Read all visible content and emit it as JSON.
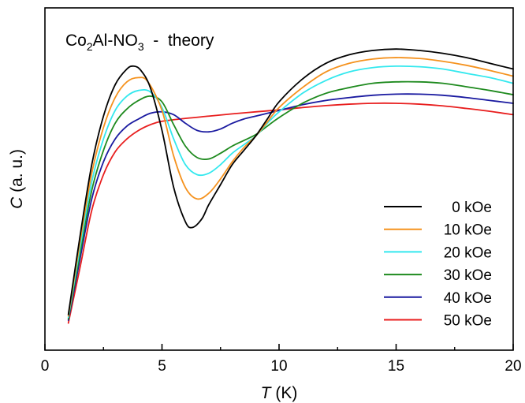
{
  "chart_data": {
    "type": "line",
    "title": "",
    "annotation": {
      "prefix": "Co",
      "sub1": "2",
      "middle": "Al-NO",
      "sub2": "3",
      "suffix": "  -  theory"
    },
    "xlabel": {
      "italic": "T",
      "rest": " (K)"
    },
    "ylabel": {
      "italic": "C",
      "rest": " (a. u.)"
    },
    "xlim": [
      0,
      20
    ],
    "ylim": [
      0,
      1
    ],
    "x_ticks": [
      0,
      5,
      10,
      15,
      20
    ],
    "x_ticks_display": [
      "0",
      "5",
      "10",
      "15",
      "20"
    ],
    "x_minor_ticks": [
      2.5,
      7.5,
      12.5,
      17.5
    ],
    "y_tick_labels": false,
    "grid": false,
    "legend_position": "right",
    "series": [
      {
        "name": "0 kOe",
        "color": "#000000",
        "points": [
          [
            1,
            0.075
          ],
          [
            1.5,
            0.35
          ],
          [
            2,
            0.6
          ],
          [
            2.5,
            0.77
          ],
          [
            3,
            0.88
          ],
          [
            3.5,
            0.935
          ],
          [
            3.8,
            0.945
          ],
          [
            4.1,
            0.93
          ],
          [
            4.5,
            0.87
          ],
          [
            5,
            0.72
          ],
          [
            5.5,
            0.52
          ],
          [
            6,
            0.4
          ],
          [
            6.3,
            0.38
          ],
          [
            6.7,
            0.41
          ],
          [
            7,
            0.46
          ],
          [
            7.5,
            0.53
          ],
          [
            8,
            0.6
          ],
          [
            8.5,
            0.65
          ],
          [
            9,
            0.7
          ],
          [
            9.5,
            0.76
          ],
          [
            10,
            0.82
          ],
          [
            11,
            0.9
          ],
          [
            12,
            0.955
          ],
          [
            13,
            0.985
          ],
          [
            14,
            1.0
          ],
          [
            15,
            1.005
          ],
          [
            16,
            1.0
          ],
          [
            17,
            0.99
          ],
          [
            18,
            0.975
          ],
          [
            19,
            0.955
          ],
          [
            20,
            0.935
          ]
        ]
      },
      {
        "name": "10 kOe",
        "color": "#F5921E",
        "points": [
          [
            1,
            0.07
          ],
          [
            1.5,
            0.33
          ],
          [
            2,
            0.57
          ],
          [
            2.5,
            0.73
          ],
          [
            3,
            0.835
          ],
          [
            3.5,
            0.89
          ],
          [
            4,
            0.905
          ],
          [
            4.4,
            0.89
          ],
          [
            5,
            0.79
          ],
          [
            5.5,
            0.63
          ],
          [
            6,
            0.52
          ],
          [
            6.5,
            0.48
          ],
          [
            7,
            0.5
          ],
          [
            7.5,
            0.55
          ],
          [
            8,
            0.61
          ],
          [
            8.5,
            0.66
          ],
          [
            9,
            0.7
          ],
          [
            9.5,
            0.75
          ],
          [
            10,
            0.8
          ],
          [
            11,
            0.87
          ],
          [
            12,
            0.925
          ],
          [
            13,
            0.955
          ],
          [
            14,
            0.97
          ],
          [
            15,
            0.975
          ],
          [
            16,
            0.972
          ],
          [
            17,
            0.962
          ],
          [
            18,
            0.948
          ],
          [
            19,
            0.93
          ],
          [
            20,
            0.91
          ]
        ]
      },
      {
        "name": "20 kOe",
        "color": "#33E8EE",
        "points": [
          [
            1,
            0.065
          ],
          [
            1.5,
            0.31
          ],
          [
            2,
            0.54
          ],
          [
            2.5,
            0.69
          ],
          [
            3,
            0.79
          ],
          [
            3.5,
            0.84
          ],
          [
            4,
            0.86
          ],
          [
            4.5,
            0.855
          ],
          [
            5,
            0.8
          ],
          [
            5.5,
            0.69
          ],
          [
            6,
            0.6
          ],
          [
            6.5,
            0.565
          ],
          [
            7,
            0.57
          ],
          [
            7.5,
            0.6
          ],
          [
            8,
            0.64
          ],
          [
            8.5,
            0.67
          ],
          [
            9,
            0.7
          ],
          [
            9.5,
            0.745
          ],
          [
            10,
            0.785
          ],
          [
            11,
            0.85
          ],
          [
            12,
            0.895
          ],
          [
            13,
            0.925
          ],
          [
            14,
            0.94
          ],
          [
            15,
            0.945
          ],
          [
            16,
            0.943
          ],
          [
            17,
            0.935
          ],
          [
            18,
            0.92
          ],
          [
            19,
            0.905
          ],
          [
            20,
            0.885
          ]
        ]
      },
      {
        "name": "30 kOe",
        "color": "#1E8A1E",
        "points": [
          [
            1,
            0.06
          ],
          [
            1.5,
            0.29
          ],
          [
            2,
            0.51
          ],
          [
            2.5,
            0.65
          ],
          [
            3,
            0.745
          ],
          [
            3.5,
            0.795
          ],
          [
            4,
            0.825
          ],
          [
            4.5,
            0.84
          ],
          [
            5,
            0.82
          ],
          [
            5.5,
            0.74
          ],
          [
            6,
            0.665
          ],
          [
            6.5,
            0.625
          ],
          [
            7,
            0.62
          ],
          [
            7.5,
            0.64
          ],
          [
            8,
            0.665
          ],
          [
            8.5,
            0.685
          ],
          [
            9,
            0.705
          ],
          [
            9.5,
            0.735
          ],
          [
            10,
            0.765
          ],
          [
            11,
            0.815
          ],
          [
            12,
            0.85
          ],
          [
            13,
            0.87
          ],
          [
            14,
            0.885
          ],
          [
            15,
            0.89
          ],
          [
            16,
            0.89
          ],
          [
            17,
            0.885
          ],
          [
            18,
            0.873
          ],
          [
            19,
            0.86
          ],
          [
            20,
            0.845
          ]
        ]
      },
      {
        "name": "40 kOe",
        "color": "#1A1AA0",
        "points": [
          [
            1,
            0.055
          ],
          [
            1.5,
            0.27
          ],
          [
            2,
            0.48
          ],
          [
            2.5,
            0.61
          ],
          [
            3,
            0.69
          ],
          [
            3.5,
            0.735
          ],
          [
            4,
            0.76
          ],
          [
            4.5,
            0.78
          ],
          [
            5,
            0.785
          ],
          [
            5.5,
            0.775
          ],
          [
            6,
            0.745
          ],
          [
            6.5,
            0.72
          ],
          [
            7,
            0.715
          ],
          [
            7.5,
            0.725
          ],
          [
            8,
            0.745
          ],
          [
            8.5,
            0.76
          ],
          [
            9,
            0.77
          ],
          [
            9.5,
            0.78
          ],
          [
            10,
            0.79
          ],
          [
            11,
            0.81
          ],
          [
            12,
            0.825
          ],
          [
            13,
            0.835
          ],
          [
            14,
            0.843
          ],
          [
            15,
            0.847
          ],
          [
            16,
            0.847
          ],
          [
            17,
            0.843
          ],
          [
            18,
            0.835
          ],
          [
            19,
            0.825
          ],
          [
            20,
            0.815
          ]
        ]
      },
      {
        "name": "50 kOe",
        "color": "#E81E1E",
        "points": [
          [
            1,
            0.045
          ],
          [
            1.5,
            0.24
          ],
          [
            2,
            0.44
          ],
          [
            2.5,
            0.565
          ],
          [
            3,
            0.645
          ],
          [
            3.5,
            0.69
          ],
          [
            4,
            0.72
          ],
          [
            4.5,
            0.74
          ],
          [
            5,
            0.752
          ],
          [
            6,
            0.762
          ],
          [
            7,
            0.77
          ],
          [
            8,
            0.778
          ],
          [
            9,
            0.785
          ],
          [
            10,
            0.792
          ],
          [
            11,
            0.8
          ],
          [
            12,
            0.807
          ],
          [
            13,
            0.812
          ],
          [
            14,
            0.815
          ],
          [
            15,
            0.815
          ],
          [
            16,
            0.812
          ],
          [
            17,
            0.806
          ],
          [
            18,
            0.797
          ],
          [
            19,
            0.787
          ],
          [
            20,
            0.775
          ]
        ]
      }
    ]
  }
}
